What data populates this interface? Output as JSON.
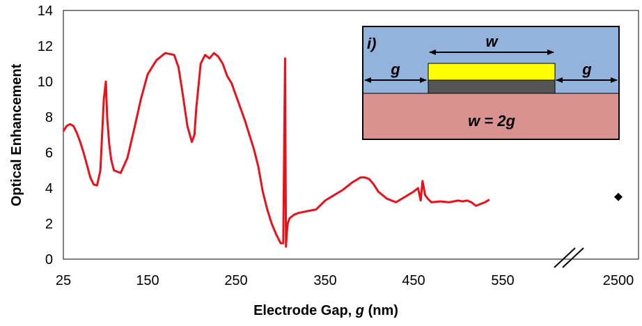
{
  "chart_data": {
    "type": "line",
    "xlabel": "Electrode Gap, g (nm)",
    "xlabel_parts": {
      "prefix": "Electrode Gap, ",
      "var": "g",
      "suffix": " (nm)"
    },
    "ylabel": "Optical Enhancement",
    "ylim": [
      0,
      14
    ],
    "y_ticks": [
      "0",
      "2",
      "4",
      "6",
      "8",
      "10",
      "12",
      "14"
    ],
    "x_tick_labels": [
      "25",
      "150",
      "250",
      "350",
      "450",
      "550",
      "2500"
    ],
    "x_tick_values": [
      25,
      150,
      250,
      350,
      450,
      550,
      2500
    ],
    "axis_break": "between 550 and 2500",
    "grid": false,
    "colors": {
      "line": "#e8111a",
      "marker": "#000000",
      "inset_top": "#93b3dc",
      "inset_bottom": "#d89391",
      "bar": "#ffff00",
      "under_bar": "#555555"
    },
    "series": [
      {
        "color": "#e8111a",
        "x": [
          25,
          30,
          35,
          40,
          45,
          50,
          55,
          60,
          65,
          70,
          75,
          80,
          85,
          88,
          90,
          93,
          96,
          100,
          110,
          120,
          130,
          140,
          150,
          160,
          170,
          180,
          185,
          190,
          195,
          200,
          203,
          205,
          208,
          210,
          215,
          220,
          225,
          230,
          235,
          240,
          245,
          250,
          255,
          260,
          265,
          270,
          275,
          280,
          285,
          290,
          295,
          300,
          303,
          305,
          306,
          307,
          308,
          310,
          315,
          320,
          330,
          340,
          350,
          360,
          370,
          380,
          390,
          395,
          400,
          405,
          410,
          420,
          430,
          440,
          450,
          455,
          458,
          460,
          463,
          466,
          470,
          480,
          490,
          500,
          505,
          510,
          515,
          520,
          525,
          530,
          535
        ],
        "y": [
          7.2,
          7.5,
          7.6,
          7.5,
          7.1,
          6.6,
          6.0,
          5.3,
          4.6,
          4.2,
          4.15,
          5.0,
          9.0,
          10.0,
          8.0,
          6.5,
          5.6,
          5.0,
          4.85,
          5.7,
          7.3,
          9.0,
          10.4,
          11.2,
          11.6,
          11.5,
          10.8,
          9.2,
          7.5,
          6.6,
          7.0,
          8.5,
          10.0,
          11.0,
          11.5,
          11.3,
          11.6,
          11.4,
          11.0,
          10.3,
          9.9,
          9.2,
          8.5,
          7.8,
          7.0,
          6.2,
          5.2,
          3.8,
          2.8,
          2.0,
          1.4,
          0.9,
          0.9,
          11.3,
          0.7,
          1.5,
          2.0,
          2.3,
          2.5,
          2.6,
          2.7,
          2.8,
          3.3,
          3.6,
          3.9,
          4.3,
          4.6,
          4.6,
          4.5,
          4.2,
          3.8,
          3.4,
          3.2,
          3.5,
          3.8,
          4.0,
          3.3,
          4.4,
          3.6,
          3.4,
          3.2,
          3.25,
          3.2,
          3.3,
          3.25,
          3.3,
          3.2,
          3.0,
          3.1,
          3.2,
          3.35
        ]
      }
    ],
    "marker": {
      "x": 2500,
      "y": 3.5,
      "shape": "diamond"
    },
    "inset": {
      "label": "i)",
      "w_label": "w",
      "g_left": "g",
      "g_right": "g",
      "equation": "w = 2g"
    }
  }
}
